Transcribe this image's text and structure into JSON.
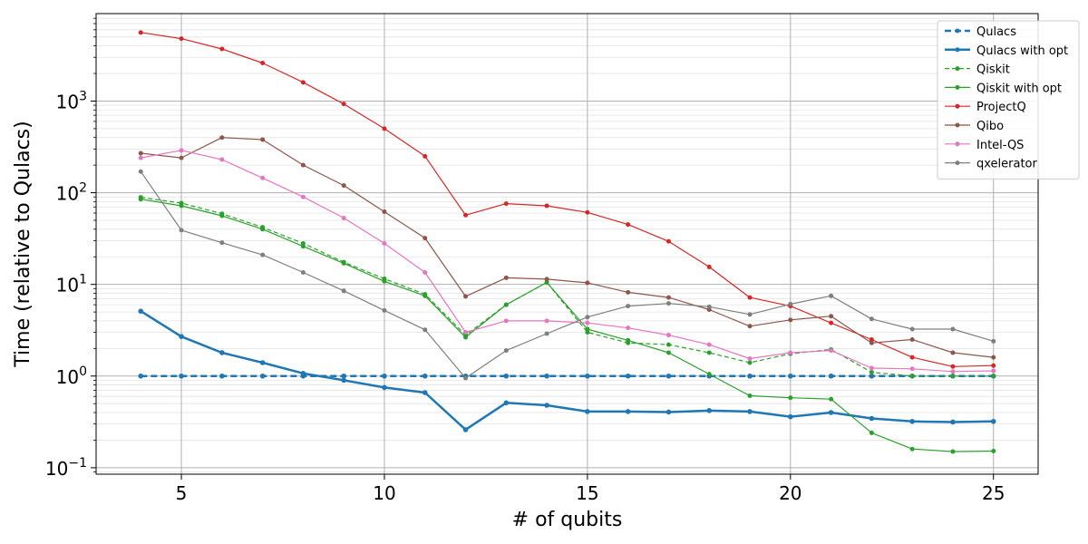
{
  "chart_data": {
    "type": "line",
    "xlabel": "# of qubits",
    "ylabel": "Time (relative to Qulacs)",
    "x": [
      4,
      5,
      6,
      7,
      8,
      9,
      10,
      11,
      12,
      13,
      14,
      15,
      16,
      17,
      18,
      19,
      20,
      21,
      22,
      23,
      24,
      25
    ],
    "xlim": [
      2.9,
      26.1
    ],
    "ylim": [
      0.085,
      9000
    ],
    "yscale": "log",
    "xticks": [
      5,
      10,
      15,
      20,
      25
    ],
    "yticks": [
      {
        "value": 0.1,
        "base": "10",
        "exp": "−1"
      },
      {
        "value": 1,
        "base": "10",
        "exp": "0"
      },
      {
        "value": 10,
        "base": "10",
        "exp": "1"
      },
      {
        "value": 100,
        "base": "10",
        "exp": "2"
      },
      {
        "value": 1000,
        "base": "10",
        "exp": "3"
      }
    ],
    "grid": true,
    "legend_position": "top-right",
    "series": [
      {
        "name": "Qulacs",
        "color": "#1f77b4",
        "dashed": true,
        "width": 2.5,
        "values": [
          1,
          1,
          1,
          1,
          1,
          1,
          1,
          1,
          1,
          1,
          1,
          1,
          1,
          1,
          1,
          1,
          1,
          1,
          1,
          1,
          1,
          1
        ]
      },
      {
        "name": "Qulacs with opt",
        "color": "#1f77b4",
        "dashed": false,
        "width": 2.5,
        "values": [
          5.1,
          2.7,
          1.8,
          1.4,
          1.07,
          0.9,
          0.75,
          0.66,
          0.26,
          0.51,
          0.48,
          0.41,
          0.41,
          0.405,
          0.42,
          0.41,
          0.36,
          0.4,
          0.345,
          0.32,
          0.315,
          0.32
        ]
      },
      {
        "name": "Qiskit",
        "color": "#2ca02c",
        "dashed": true,
        "width": 1.2,
        "values": [
          89,
          77,
          59,
          42,
          28,
          17.5,
          11.5,
          7.8,
          2.8,
          6,
          10.5,
          3,
          2.3,
          2.2,
          1.8,
          1.4,
          1.75,
          1.95,
          1.1,
          1,
          1,
          1
        ]
      },
      {
        "name": "Qiskit with opt",
        "color": "#2ca02c",
        "dashed": false,
        "width": 1.2,
        "values": [
          85,
          72,
          56,
          40,
          26,
          17,
          10.8,
          7.5,
          2.65,
          6,
          10.5,
          3.25,
          2.45,
          1.8,
          1.05,
          0.61,
          0.58,
          0.56,
          0.24,
          0.16,
          0.15,
          0.152
        ]
      },
      {
        "name": "ProjectQ",
        "color": "#d62728",
        "dashed": false,
        "width": 1.2,
        "values": [
          5600,
          4800,
          3700,
          2600,
          1600,
          930,
          500,
          250,
          57,
          76,
          72,
          61,
          45,
          29.5,
          15.5,
          7.2,
          5.8,
          3.8,
          2.5,
          1.6,
          1.27,
          1.3
        ]
      },
      {
        "name": "Qibo",
        "color": "#8c564b",
        "dashed": false,
        "width": 1.2,
        "values": [
          270,
          240,
          400,
          380,
          200,
          120,
          62,
          32,
          7.4,
          11.8,
          11.4,
          10.4,
          8.2,
          7.2,
          5.3,
          3.5,
          4.1,
          4.5,
          2.3,
          2.5,
          1.8,
          1.6
        ]
      },
      {
        "name": "Intel-QS",
        "color": "#e377c2",
        "dashed": false,
        "width": 1.2,
        "values": [
          240,
          290,
          230,
          145,
          90,
          53,
          28,
          13.5,
          3,
          4,
          4,
          3.8,
          3.35,
          2.8,
          2.2,
          1.55,
          1.8,
          1.9,
          1.22,
          1.2,
          1.12,
          1.14
        ]
      },
      {
        "name": "qxelerator",
        "color": "#7f7f7f",
        "dashed": false,
        "width": 1.2,
        "values": [
          170,
          39,
          28.5,
          21,
          13.5,
          8.5,
          5.2,
          3.2,
          0.95,
          1.9,
          2.9,
          4.4,
          5.8,
          6.2,
          5.7,
          4.7,
          6.1,
          7.5,
          4.2,
          3.25,
          3.25,
          2.4
        ]
      }
    ]
  }
}
